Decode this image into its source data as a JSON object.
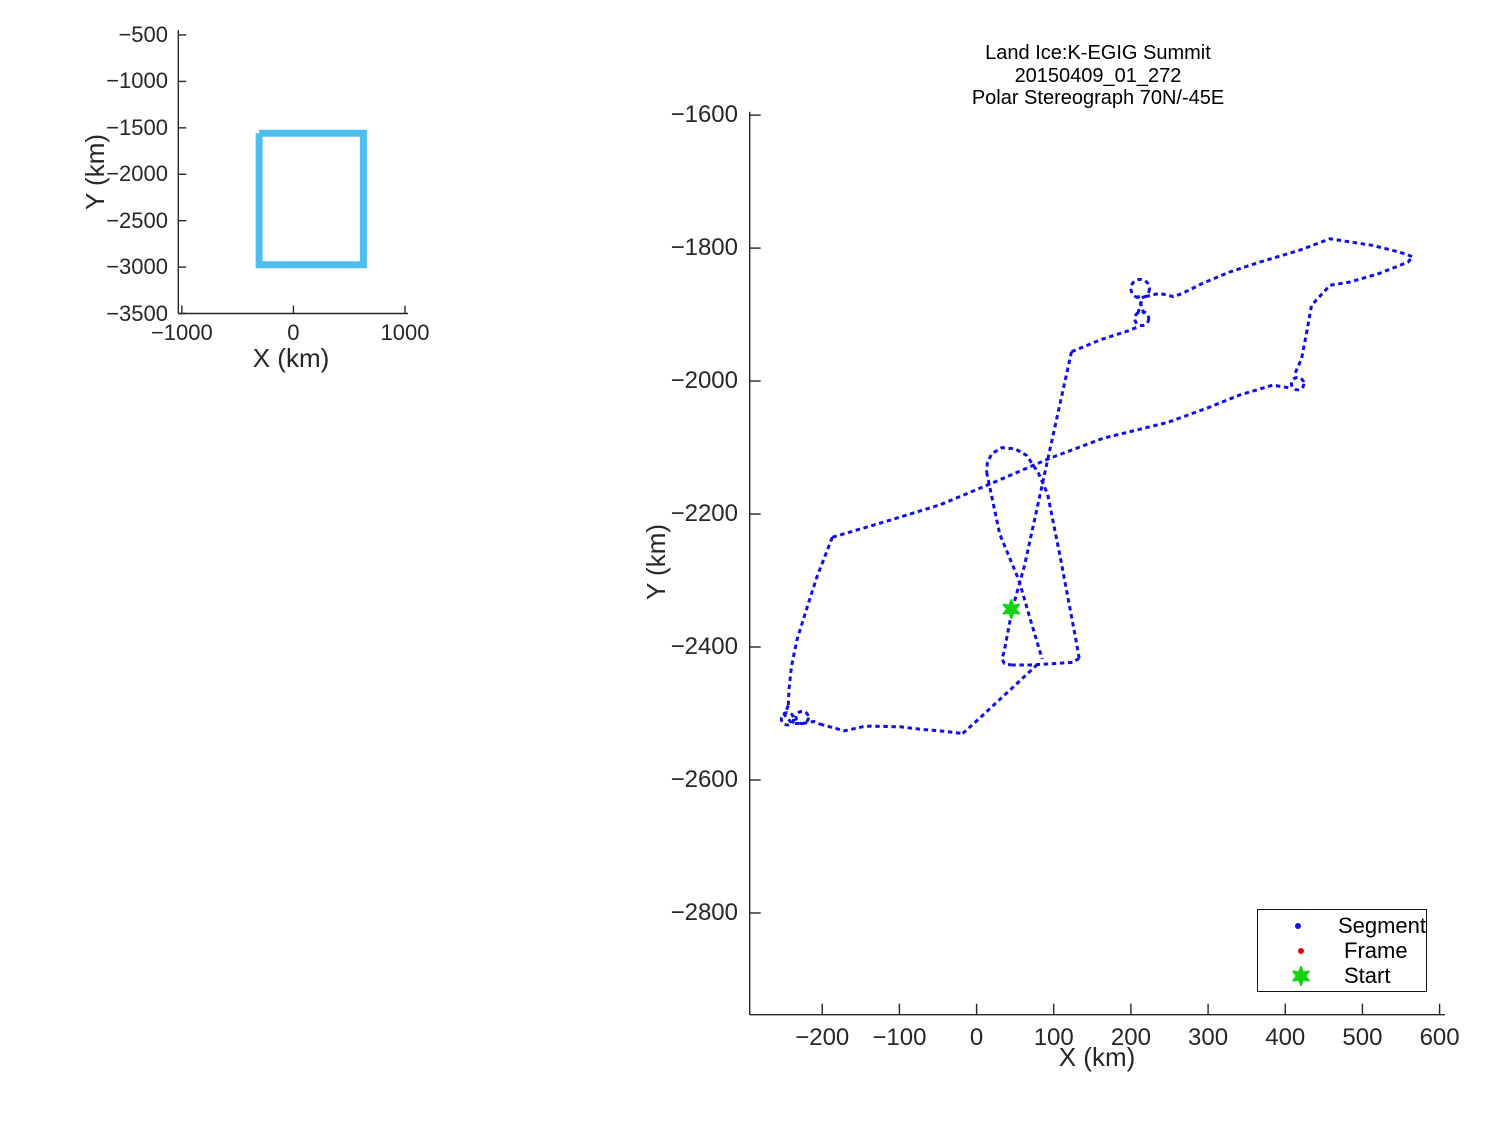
{
  "figure": {
    "background": "#ffffff",
    "kind": "MATLAB-style flight line figure with overview inset and flight track plot"
  },
  "colors": {
    "coverage_box": "#4DBEEE",
    "segment_track": "#1010e0",
    "frame": "#e60000",
    "start_marker": "#12d312",
    "axis": "#262626",
    "text": "#000000"
  },
  "chart_data": [
    {
      "type": "line",
      "role": "overview-inset",
      "title": "",
      "xlabel": "X (km)",
      "ylabel": "Y (km)",
      "xlim": [
        -1032,
        1027
      ],
      "ylim": [
        -446,
        -3500
      ],
      "xticks": [
        -1000,
        0,
        1000
      ],
      "yticks": [
        -500,
        -1000,
        -1500,
        -2000,
        -2500,
        -3000,
        -3500
      ],
      "grid": false,
      "series": [
        {
          "name": "coverage-box",
          "color": "#4DBEEE",
          "linewidth": 7,
          "dash": "solid",
          "points": [
            [
              -308,
              -1559
            ],
            [
              627,
              -1559
            ],
            [
              627,
              -2975
            ],
            [
              -308,
              -2975
            ],
            [
              -308,
              -1559
            ]
          ]
        }
      ]
    },
    {
      "type": "line",
      "role": "flight-track",
      "title": [
        "Land Ice:K-EGIG Summit",
        "20150409_01_272",
        "Polar Stereograph 70N/-45E"
      ],
      "xlabel": "X (km)",
      "ylabel": "Y (km)",
      "xlim": [
        -294,
        607
      ],
      "ylim": [
        -1595,
        -2953
      ],
      "xticks": [
        -200,
        -100,
        0,
        100,
        200,
        300,
        400,
        500,
        600
      ],
      "yticks": [
        -1600,
        -1800,
        -2000,
        -2200,
        -2400,
        -2600,
        -2800
      ],
      "grid": false,
      "track_color": "#1010e0",
      "track_style": "dense blue dot markers (dashed appearance)",
      "segments": [
        {
          "name": "climb-to-fig8",
          "points": [
            [
              123,
              -1956
            ],
            [
              160,
              -1938
            ],
            [
              195,
              -1925
            ],
            [
              208,
              -1919
            ]
          ]
        },
        {
          "name": "fig8-bottom-loop",
          "circle": [
            214,
            -1906,
            9
          ]
        },
        {
          "name": "fig8-cross-1",
          "points": [
            [
              209,
              -1898
            ],
            [
              216,
              -1872
            ]
          ]
        },
        {
          "name": "fig8-cross-2",
          "points": [
            [
              217,
              -1899
            ],
            [
              209,
              -1871
            ]
          ]
        },
        {
          "name": "fig8-top-loop",
          "circle": [
            212,
            -1861,
            12
          ]
        },
        {
          "name": "east-leg",
          "points": [
            [
              219,
              -1873
            ],
            [
              237,
              -1868
            ],
            [
              255,
              -1873
            ],
            [
              267,
              -1868
            ],
            [
              293,
              -1853
            ],
            [
              328,
              -1836
            ],
            [
              367,
              -1821
            ],
            [
              419,
              -1803
            ],
            [
              458,
              -1786
            ],
            [
              513,
              -1796
            ],
            [
              548,
              -1806
            ],
            [
              565,
              -1813
            ],
            [
              559,
              -1821
            ],
            [
              522,
              -1838
            ],
            [
              484,
              -1851
            ],
            [
              458,
              -1856
            ],
            [
              434,
              -1886
            ],
            [
              428,
              -1925
            ],
            [
              421,
              -1967
            ],
            [
              412,
              -1990
            ]
          ]
        },
        {
          "name": "right-loop",
          "circle": [
            416,
            -2004,
            8
          ]
        },
        {
          "name": "west-diagonal",
          "points": [
            [
              404,
              -2010
            ],
            [
              384,
              -2006
            ],
            [
              341,
              -2021
            ],
            [
              300,
              -2040
            ],
            [
              248,
              -2062
            ],
            [
              164,
              -2086
            ],
            [
              95,
              -2116
            ],
            [
              21,
              -2153
            ],
            [
              -47,
              -2186
            ],
            [
              -120,
              -2212
            ],
            [
              -187,
              -2235
            ]
          ]
        },
        {
          "name": "left-descent",
          "points": [
            [
              -187,
              -2235
            ],
            [
              -207,
              -2295
            ],
            [
              -222,
              -2349
            ],
            [
              -233,
              -2390
            ],
            [
              -240,
              -2430
            ],
            [
              -243,
              -2462
            ],
            [
              -244,
              -2488
            ]
          ]
        },
        {
          "name": "southwest-loop-a",
          "circle": [
            -245,
            -2508,
            8
          ]
        },
        {
          "name": "southwest-loop-b",
          "circle": [
            -226,
            -2506,
            8
          ]
        },
        {
          "name": "southwest-thread",
          "points": [
            [
              -244,
              -2488
            ],
            [
              -249,
              -2502
            ],
            [
              -239,
              -2515
            ],
            [
              -226,
              -2515
            ],
            [
              -211,
              -2512
            ],
            [
              -203,
              -2516
            ]
          ]
        },
        {
          "name": "south-leg",
          "points": [
            [
              -203,
              -2516
            ],
            [
              -184,
              -2522
            ],
            [
              -171,
              -2526
            ],
            [
              -148,
              -2520
            ],
            [
              -138,
              -2519
            ],
            [
              -99,
              -2520
            ],
            [
              -70,
              -2524
            ],
            [
              -48,
              -2526
            ],
            [
              -18,
              -2530
            ]
          ]
        },
        {
          "name": "northeast-climb",
          "points": [
            [
              -18,
              -2530
            ],
            [
              5,
              -2506
            ],
            [
              30,
              -2479
            ],
            [
              55,
              -2452
            ],
            [
              79,
              -2426
            ]
          ]
        },
        {
          "name": "survey-left-line",
          "points": [
            [
              123,
              -1956
            ],
            [
              100,
              -2077
            ],
            [
              80,
              -2183
            ],
            [
              62,
              -2278
            ],
            [
              46,
              -2344
            ],
            [
              36,
              -2405
            ],
            [
              33,
              -2418
            ],
            [
              36,
              -2425
            ],
            [
              45,
              -2427
            ]
          ]
        },
        {
          "name": "survey-bottom",
          "points": [
            [
              45,
              -2427
            ],
            [
              70,
              -2427
            ],
            [
              100,
              -2425
            ],
            [
              125,
              -2423
            ],
            [
              133,
              -2417
            ]
          ]
        },
        {
          "name": "survey-right-line",
          "points": [
            [
              133,
              -2417
            ],
            [
              128,
              -2385
            ],
            [
              108,
              -2262
            ],
            [
              92,
              -2170
            ],
            [
              80,
              -2138
            ],
            [
              65,
              -2112
            ],
            [
              50,
              -2102
            ],
            [
              33,
              -2100
            ],
            [
              20,
              -2109
            ],
            [
              14,
              -2122
            ],
            [
              13,
              -2137
            ]
          ]
        },
        {
          "name": "survey-cross-line",
          "points": [
            [
              13,
              -2137
            ],
            [
              30,
              -2230
            ],
            [
              55,
              -2300
            ],
            [
              70,
              -2360
            ],
            [
              85,
              -2418
            ]
          ]
        }
      ],
      "frame_points": [],
      "start": {
        "x": 45,
        "y": -2343,
        "marker": "hexagram",
        "color": "#12d312"
      },
      "legend": {
        "position": "southeast",
        "entries": [
          {
            "label": "Segment",
            "marker": "dot",
            "color": "#1010e0"
          },
          {
            "label": "Frame",
            "marker": "dot",
            "color": "#e60000"
          },
          {
            "label": "Start",
            "marker": "hexagram",
            "color": "#12d312"
          }
        ]
      }
    }
  ]
}
